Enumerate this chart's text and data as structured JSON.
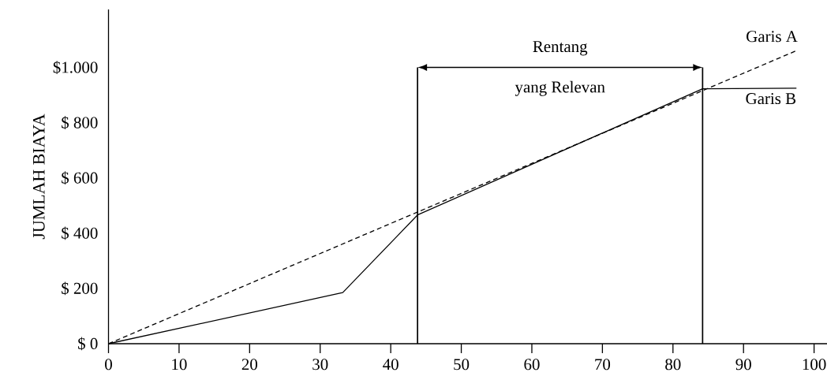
{
  "chart_data": {
    "type": "line",
    "ylabel": "JUMLAH BIAYA",
    "xlim": [
      0,
      102
    ],
    "ylim": [
      0,
      1210
    ],
    "xticks": [
      0,
      10,
      20,
      30,
      40,
      50,
      60,
      70,
      80,
      90,
      100
    ],
    "yticks": [
      {
        "value": 0,
        "label": "$ 0"
      },
      {
        "value": 200,
        "label": "$ 200"
      },
      {
        "value": 400,
        "label": "$ 400"
      },
      {
        "value": 600,
        "label": "$ 600"
      },
      {
        "value": 800,
        "label": "$ 800"
      },
      {
        "value": 1000,
        "label": "$1.000"
      }
    ],
    "grid": false,
    "legend": false,
    "series": [
      {
        "name": "Garis A",
        "color": "#000000",
        "line_style": "dashed",
        "x": [
          0,
          97.7
        ],
        "values": [
          0,
          1063
        ]
      },
      {
        "name": "Garis B",
        "color": "#000000",
        "line_style": "solid",
        "x": [
          0,
          33.2,
          43.8,
          84.2,
          97.5
        ],
        "values": [
          0,
          185,
          466,
          923,
          925
        ]
      }
    ],
    "ref_lines": [
      {
        "axis": "x",
        "value": 43.8
      },
      {
        "axis": "x",
        "value": 84.2
      }
    ],
    "annotations": [
      "Rentang",
      "yang Relevan"
    ]
  }
}
